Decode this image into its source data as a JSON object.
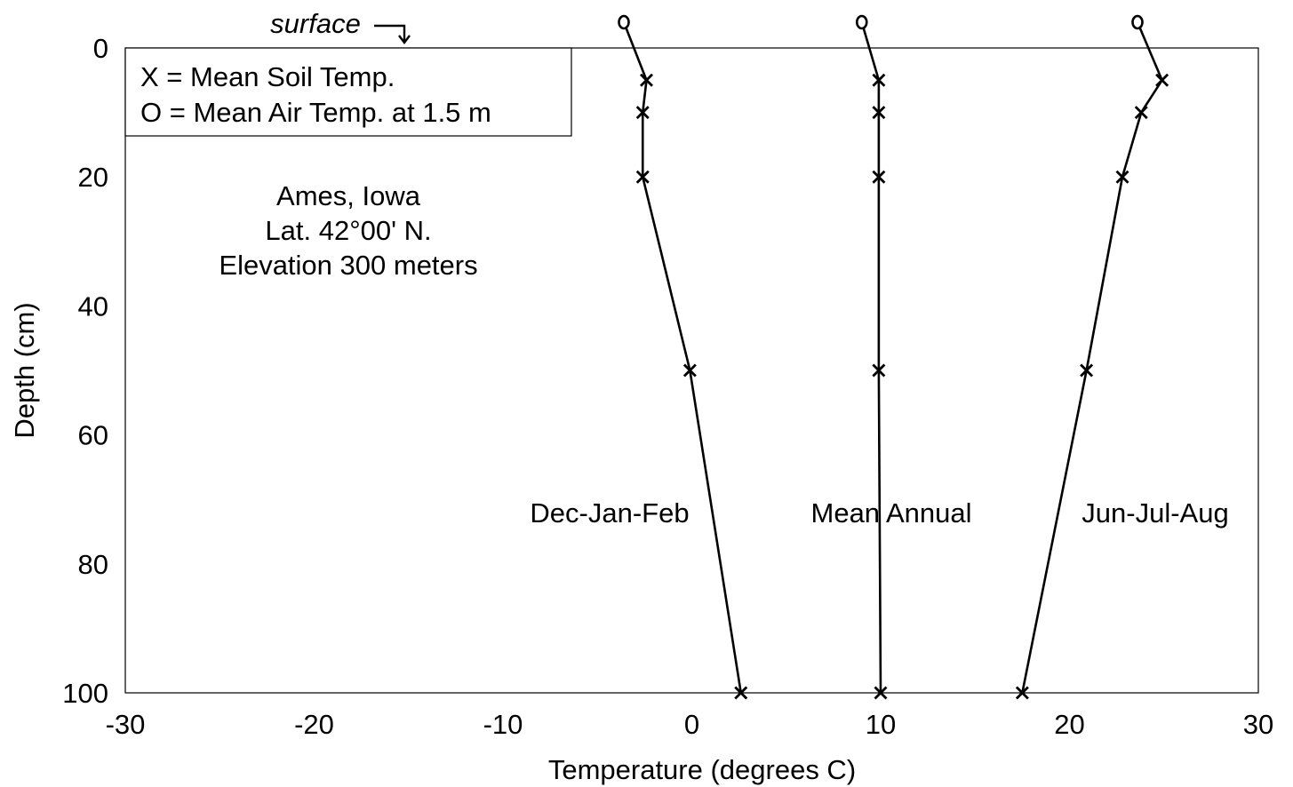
{
  "chart_data": {
    "type": "line",
    "xlabel": "Temperature (degrees C)",
    "ylabel": "Depth (cm)",
    "xlim": [
      -30,
      30
    ],
    "ylim": [
      0,
      100
    ],
    "y_inverted": true,
    "x_ticks": [
      "-30",
      "-20",
      "-10",
      "0",
      "10",
      "20",
      "30"
    ],
    "y_ticks": [
      "0",
      "20",
      "40",
      "60",
      "80",
      "100"
    ],
    "grid": false,
    "legend": {
      "position": "top-left",
      "entries": [
        "X = Mean Soil Temp.",
        "O = Mean Air Temp. at 1.5 m"
      ]
    },
    "annotations": {
      "surface": "surface",
      "location": [
        "Ames, Iowa",
        "Lat. 42°00' N.",
        "Elevation 300 meters"
      ]
    },
    "series": [
      {
        "name": "Dec-Jan-Feb",
        "air": {
          "x": -3.6,
          "label": "O"
        },
        "soil": [
          {
            "depth": 5,
            "temp": -2.4
          },
          {
            "depth": 10,
            "temp": -2.6
          },
          {
            "depth": 20,
            "temp": -2.6
          },
          {
            "depth": 50,
            "temp": -0.1
          },
          {
            "depth": 100,
            "temp": 2.6
          }
        ]
      },
      {
        "name": "Mean Annual",
        "air": {
          "x": 9.0,
          "label": "O"
        },
        "soil": [
          {
            "depth": 5,
            "temp": 9.9
          },
          {
            "depth": 10,
            "temp": 9.9
          },
          {
            "depth": 20,
            "temp": 9.9
          },
          {
            "depth": 50,
            "temp": 9.9
          },
          {
            "depth": 100,
            "temp": 10.0
          }
        ]
      },
      {
        "name": "Jun-Jul-Aug",
        "air": {
          "x": 23.6,
          "label": "O"
        },
        "soil": [
          {
            "depth": 5,
            "temp": 24.9
          },
          {
            "depth": 10,
            "temp": 23.8
          },
          {
            "depth": 20,
            "temp": 22.8
          },
          {
            "depth": 50,
            "temp": 20.9
          },
          {
            "depth": 100,
            "temp": 17.5
          }
        ]
      }
    ]
  }
}
